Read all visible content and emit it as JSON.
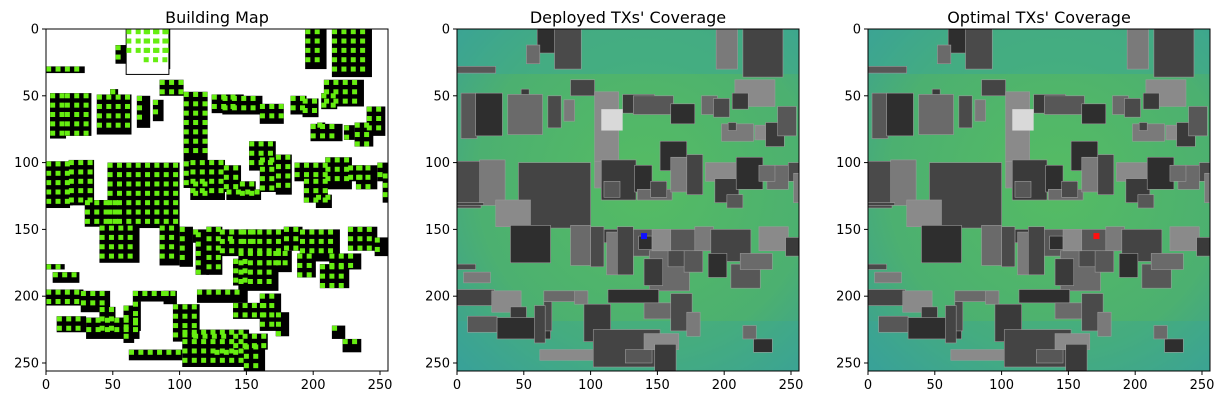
{
  "chart_data": [
    {
      "type": "heatmap",
      "title": "Building Map",
      "xlabel": "",
      "ylabel": "",
      "xlim": [
        0,
        256
      ],
      "ylim": [
        256,
        0
      ],
      "xticks": [
        0,
        50,
        100,
        150,
        200,
        250
      ],
      "yticks": [
        0,
        50,
        100,
        150,
        200,
        250
      ],
      "background_color": "#ffffff",
      "building_color": "#000000",
      "candidate_color": "#66ee11"
    },
    {
      "type": "heatmap",
      "title": "Deployed TXs' Coverage",
      "xlabel": "",
      "ylabel": "",
      "xlim": [
        0,
        256
      ],
      "ylim": [
        256,
        0
      ],
      "xticks": [
        0,
        50,
        100,
        150,
        200,
        250
      ],
      "yticks": [
        0,
        50,
        100,
        150,
        200,
        250
      ],
      "coverage_color": "#4fb36b",
      "weak_coverage_color": "#3aa79a",
      "tx_marker": {
        "x": 140,
        "y": 155,
        "color": "#1010ff"
      }
    },
    {
      "type": "heatmap",
      "title": "Optimal TXs' Coverage",
      "xlabel": "",
      "ylabel": "",
      "xlim": [
        0,
        256
      ],
      "ylim": [
        256,
        0
      ],
      "xticks": [
        0,
        50,
        100,
        150,
        200,
        250
      ],
      "yticks": [
        0,
        50,
        100,
        150,
        200,
        250
      ],
      "coverage_color": "#4fb36b",
      "weak_coverage_color": "#3aa79a",
      "tx_marker": {
        "x": 171,
        "y": 155,
        "color": "#ff1010"
      }
    }
  ]
}
